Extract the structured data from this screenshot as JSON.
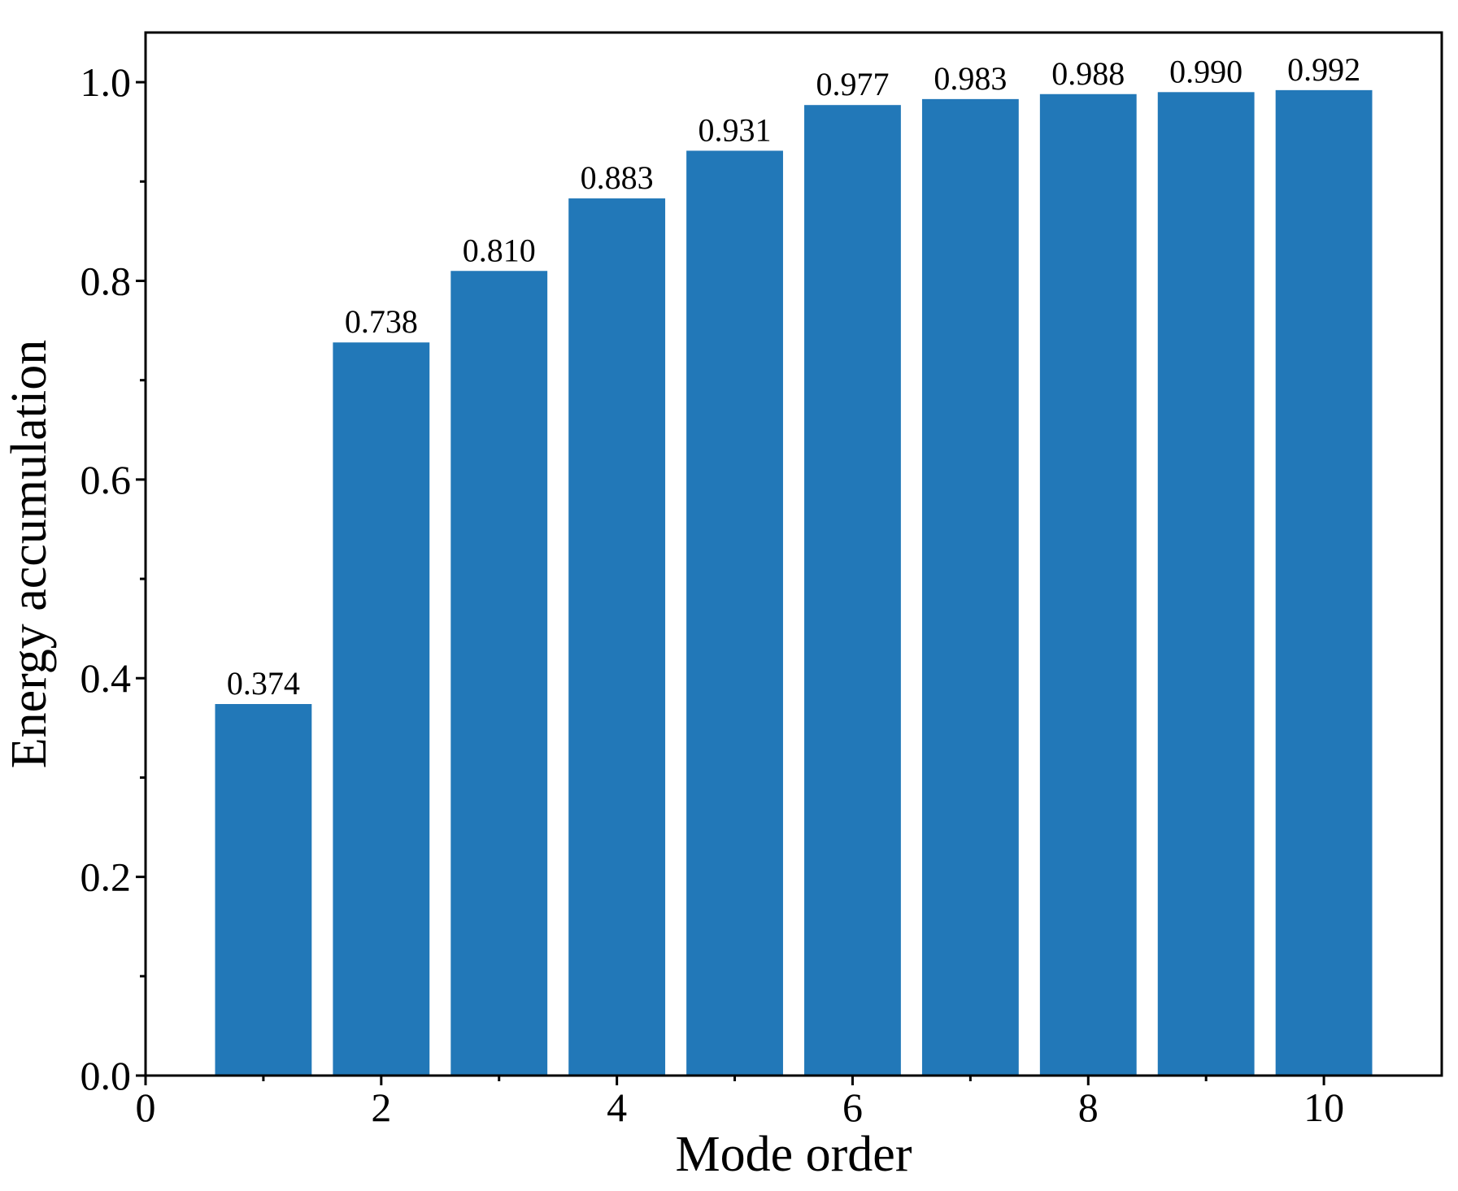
{
  "chart_data": {
    "type": "bar",
    "title": "",
    "xlabel": "Mode order",
    "ylabel": "Energy accumulation",
    "x": [
      1,
      2,
      3,
      4,
      5,
      6,
      7,
      8,
      9,
      10
    ],
    "values": [
      0.374,
      0.738,
      0.81,
      0.883,
      0.931,
      0.977,
      0.983,
      0.988,
      0.99,
      0.992
    ],
    "data_labels": [
      "0.374",
      "0.738",
      "0.810",
      "0.883",
      "0.931",
      "0.977",
      "0.983",
      "0.988",
      "0.990",
      "0.992"
    ],
    "xlim": [
      0,
      11
    ],
    "ylim": [
      0,
      1.05
    ],
    "x_ticks": [
      0,
      2,
      4,
      6,
      8,
      10
    ],
    "x_tick_labels": [
      "0",
      "2",
      "4",
      "6",
      "8",
      "10"
    ],
    "y_ticks": [
      0.0,
      0.2,
      0.4,
      0.6,
      0.8,
      1.0
    ],
    "y_tick_labels": [
      "0.0",
      "0.2",
      "0.4",
      "0.6",
      "0.8",
      "1.0"
    ],
    "bar_color": "#2278b8",
    "grid": false,
    "legend": "none"
  }
}
